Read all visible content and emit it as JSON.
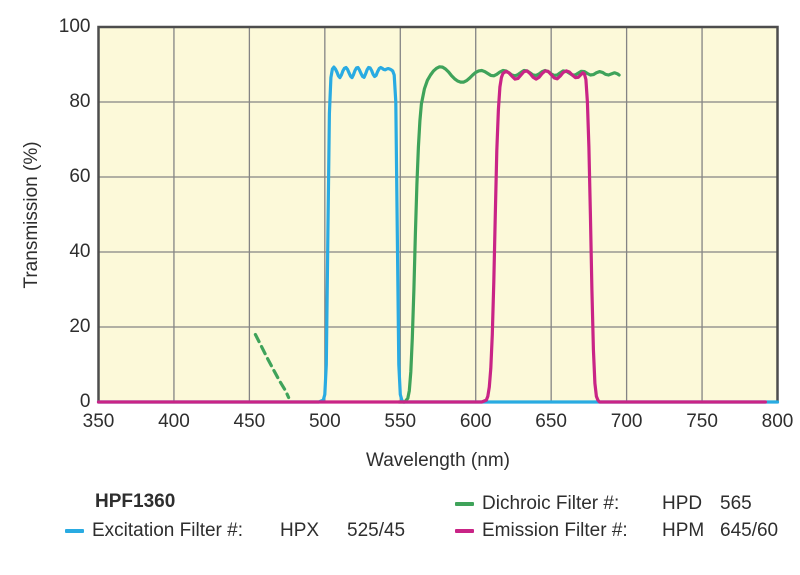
{
  "chart_data": {
    "type": "line",
    "title": "",
    "xlabel": "Wavelength (nm)",
    "ylabel": "Transmission (%)",
    "xlim": [
      350,
      800
    ],
    "ylim": [
      0,
      100
    ],
    "x_ticks": [
      350,
      400,
      450,
      500,
      550,
      600,
      650,
      700,
      750,
      800
    ],
    "y_ticks": [
      0,
      20,
      40,
      60,
      80,
      100
    ],
    "grid": true,
    "legend_position": "below",
    "plot_background": "#FCF9D9",
    "grid_color": "#848484",
    "border_color": "#4D4D4D",
    "series": [
      {
        "id": "excitation",
        "name": "Excitation Filter HPX 525/45",
        "color": "#29ABE2",
        "style": "solid",
        "points": [
          [
            350,
            0
          ],
          [
            496,
            0
          ],
          [
            499,
            0.5
          ],
          [
            500,
            2
          ],
          [
            501,
            10
          ],
          [
            502,
            45
          ],
          [
            503,
            77
          ],
          [
            504,
            86.5
          ],
          [
            505,
            88.8
          ],
          [
            506,
            89.3
          ],
          [
            507,
            88.8
          ],
          [
            508,
            88
          ],
          [
            509,
            87
          ],
          [
            510,
            86.5
          ],
          [
            511,
            87.2
          ],
          [
            512,
            88.3
          ],
          [
            513,
            89
          ],
          [
            514,
            89.2
          ],
          [
            515,
            88.7
          ],
          [
            516,
            87.8
          ],
          [
            517,
            86.9
          ],
          [
            518,
            86.5
          ],
          [
            519,
            87.3
          ],
          [
            520,
            88.4
          ],
          [
            521,
            89.1
          ],
          [
            522,
            89.2
          ],
          [
            523,
            88.5
          ],
          [
            524,
            87.6
          ],
          [
            525,
            86.8
          ],
          [
            526,
            86.6
          ],
          [
            527,
            87.5
          ],
          [
            528,
            88.6
          ],
          [
            529,
            89.2
          ],
          [
            530,
            89.1
          ],
          [
            531,
            88.4
          ],
          [
            532,
            87.4
          ],
          [
            533,
            86.8
          ],
          [
            534,
            87.1
          ],
          [
            535,
            88.1
          ],
          [
            536,
            88.9
          ],
          [
            537,
            89.2
          ],
          [
            538,
            89
          ],
          [
            539,
            88.7
          ],
          [
            540,
            88.6
          ],
          [
            541,
            88.8
          ],
          [
            542,
            88.9
          ],
          [
            543,
            88.8
          ],
          [
            544,
            88.6
          ],
          [
            545,
            88.3
          ],
          [
            546,
            87.2
          ],
          [
            547,
            80
          ],
          [
            548,
            45
          ],
          [
            549,
            10
          ],
          [
            550,
            2
          ],
          [
            551,
            0.5
          ],
          [
            552,
            0
          ],
          [
            800,
            0
          ]
        ]
      },
      {
        "id": "dichroic-cuton",
        "name": "Dichroic Filter HPD 565 (short-wave dashed segment)",
        "color": "#3FA35A",
        "style": "dashed",
        "points": [
          [
            454,
            18
          ],
          [
            458,
            14.8
          ],
          [
            462,
            11.6
          ],
          [
            466,
            8.6
          ],
          [
            470,
            5.6
          ],
          [
            474,
            3
          ],
          [
            476,
            1.2
          ]
        ]
      },
      {
        "id": "dichroic",
        "name": "Dichroic Filter HPD 565",
        "color": "#3FA35A",
        "style": "solid",
        "points": [
          [
            549,
            0
          ],
          [
            553,
            0
          ],
          [
            555,
            1
          ],
          [
            556,
            3
          ],
          [
            557,
            8
          ],
          [
            558,
            17
          ],
          [
            559,
            30
          ],
          [
            560,
            45
          ],
          [
            561,
            58
          ],
          [
            562,
            68
          ],
          [
            563,
            75
          ],
          [
            564,
            79.5
          ],
          [
            566,
            83.5
          ],
          [
            568,
            85.8
          ],
          [
            570,
            87.2
          ],
          [
            572,
            88.3
          ],
          [
            574,
            89
          ],
          [
            576,
            89.4
          ],
          [
            578,
            89.3
          ],
          [
            580,
            88.8
          ],
          [
            582,
            88
          ],
          [
            584,
            87
          ],
          [
            586,
            86.2
          ],
          [
            588,
            85.6
          ],
          [
            590,
            85.3
          ],
          [
            592,
            85.3
          ],
          [
            594,
            85.7
          ],
          [
            596,
            86.4
          ],
          [
            598,
            87.2
          ],
          [
            600,
            87.9
          ],
          [
            602,
            88.3
          ],
          [
            604,
            88.4
          ],
          [
            606,
            88.1
          ],
          [
            608,
            87.6
          ],
          [
            610,
            87.1
          ],
          [
            612,
            87
          ],
          [
            614,
            87.4
          ],
          [
            616,
            88
          ],
          [
            618,
            88.4
          ],
          [
            620,
            88.3
          ],
          [
            622,
            87.8
          ],
          [
            624,
            87.2
          ],
          [
            626,
            87
          ],
          [
            628,
            87.3
          ],
          [
            630,
            87.9
          ],
          [
            632,
            88.4
          ],
          [
            634,
            88.3
          ],
          [
            636,
            87.8
          ],
          [
            638,
            87.2
          ],
          [
            640,
            87.1
          ],
          [
            642,
            87.5
          ],
          [
            644,
            88.1
          ],
          [
            646,
            88.4
          ],
          [
            648,
            88.1
          ],
          [
            650,
            87.5
          ],
          [
            652,
            87.1
          ],
          [
            654,
            87.2
          ],
          [
            656,
            87.8
          ],
          [
            658,
            88.3
          ],
          [
            660,
            88.2
          ],
          [
            662,
            87.7
          ],
          [
            664,
            87.2
          ],
          [
            666,
            87.2
          ],
          [
            668,
            87.7
          ],
          [
            670,
            88.2
          ],
          [
            672,
            88.1
          ],
          [
            674,
            87.6
          ],
          [
            676,
            87.2
          ],
          [
            678,
            87.3
          ],
          [
            680,
            87.8
          ],
          [
            682,
            88.1
          ],
          [
            684,
            87.9
          ],
          [
            686,
            87.4
          ],
          [
            688,
            87.2
          ],
          [
            690,
            87.5
          ],
          [
            692,
            87.8
          ],
          [
            694,
            87.5
          ],
          [
            695,
            87.2
          ]
        ]
      },
      {
        "id": "emission",
        "name": "Emission Filter HPM 645/60",
        "color": "#C92486",
        "style": "solid",
        "points": [
          [
            350,
            0
          ],
          [
            604,
            0
          ],
          [
            607,
            0.5
          ],
          [
            608,
            1.5
          ],
          [
            609,
            4
          ],
          [
            610,
            9
          ],
          [
            611,
            18
          ],
          [
            612,
            32
          ],
          [
            613,
            50
          ],
          [
            614,
            67
          ],
          [
            615,
            78
          ],
          [
            616,
            84
          ],
          [
            617,
            86.5
          ],
          [
            618,
            87.6
          ],
          [
            620,
            88.2
          ],
          [
            622,
            87.8
          ],
          [
            624,
            86.9
          ],
          [
            626,
            86.1
          ],
          [
            628,
            86.3
          ],
          [
            630,
            87.2
          ],
          [
            632,
            88.1
          ],
          [
            634,
            88.3
          ],
          [
            636,
            87.6
          ],
          [
            638,
            86.6
          ],
          [
            640,
            86.1
          ],
          [
            642,
            86.6
          ],
          [
            644,
            87.6
          ],
          [
            646,
            88.3
          ],
          [
            648,
            88.2
          ],
          [
            650,
            87.3
          ],
          [
            652,
            86.4
          ],
          [
            654,
            86.2
          ],
          [
            656,
            86.9
          ],
          [
            658,
            87.9
          ],
          [
            660,
            88.3
          ],
          [
            662,
            88
          ],
          [
            664,
            87.2
          ],
          [
            666,
            86.5
          ],
          [
            668,
            86.6
          ],
          [
            670,
            87.4
          ],
          [
            671,
            87.8
          ],
          [
            672,
            87.5
          ],
          [
            673,
            86
          ],
          [
            674,
            80
          ],
          [
            675,
            68
          ],
          [
            676,
            50
          ],
          [
            677,
            30
          ],
          [
            678,
            14
          ],
          [
            679,
            5
          ],
          [
            680,
            1.5
          ],
          [
            681,
            0.5
          ],
          [
            682,
            0
          ],
          [
            792,
            0
          ]
        ]
      }
    ]
  },
  "legend": {
    "set_name": "HPF1360",
    "rows": [
      {
        "label": "Excitation Filter #:",
        "code": "HPX",
        "value": "525/45",
        "color": "#29ABE2"
      },
      {
        "label": "Dichroic Filter #:",
        "code": "HPD",
        "value": "565",
        "color": "#3FA35A"
      },
      {
        "label": "Emission Filter #:",
        "code": "HPM",
        "value": "645/60",
        "color": "#C92486"
      }
    ]
  }
}
